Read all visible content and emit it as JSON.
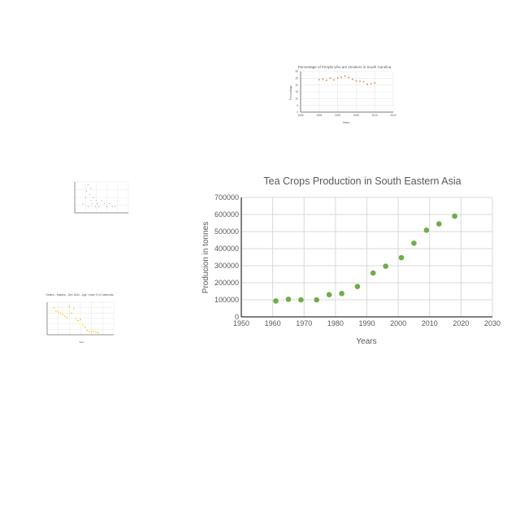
{
  "colors": {
    "background": "#ffffff",
    "grid": "#d9d9d9",
    "axis": "#000000",
    "text": "#595959",
    "tea_marker": "#70ad47",
    "smoke_marker": "#ed7d31",
    "deaths_marker": "#ffc000",
    "scatter_marker": "#a5a5a5"
  },
  "chart_data": [
    {
      "id": "tea",
      "type": "scatter",
      "title": "Tea Crops  Production in South Eastern Asia",
      "xlabel": "Years",
      "ylabel": "Producion in tonnes",
      "xlim": [
        1950,
        2030
      ],
      "ylim": [
        0,
        700000
      ],
      "xticks": [
        1950,
        1960,
        1970,
        1980,
        1990,
        2000,
        2010,
        2020,
        2030
      ],
      "yticks": [
        0,
        100000,
        200000,
        300000,
        400000,
        500000,
        600000,
        700000
      ],
      "grid": true,
      "series": [
        {
          "x": [
            1961,
            1965,
            1969,
            1974,
            1978,
            1982,
            1987,
            1992,
            1996,
            2001,
            2005,
            2009,
            2013,
            2018
          ],
          "y": [
            93000,
            103000,
            100000,
            100000,
            130000,
            137000,
            178000,
            257000,
            297000,
            347000,
            432000,
            508000,
            545000,
            590000
          ]
        }
      ]
    },
    {
      "id": "smokers",
      "type": "scatter",
      "title": "Percentage of People who are smokers in South Carolina",
      "xlabel": "Years",
      "ylabel": "Percentage",
      "xlim": [
        1990,
        2015
      ],
      "ylim": [
        0,
        30
      ],
      "xticks": [
        1990,
        1995,
        2000,
        2005,
        2010,
        2015
      ],
      "yticks": [
        0,
        5,
        10,
        15,
        20,
        25,
        30
      ],
      "grid": true,
      "series": [
        {
          "x": [
            1995,
            1996,
            1997,
            1998,
            1999,
            2000,
            2001,
            2002,
            2003,
            2004,
            2005,
            2006,
            2007,
            2008,
            2009,
            2010
          ],
          "y": [
            24,
            24.5,
            23.5,
            25,
            23.8,
            25.2,
            25.8,
            26.5,
            25.5,
            24.2,
            23,
            22.8,
            22.5,
            20.5,
            21,
            21.5
          ]
        }
      ]
    },
    {
      "id": "scatter_small",
      "type": "scatter",
      "title": "",
      "grid": true,
      "xlim": [
        0,
        10
      ],
      "ylim": [
        0,
        10
      ],
      "series": [
        {
          "x": [
            1.5,
            2,
            2.2,
            2.5,
            2.5,
            2.8,
            3,
            3,
            3.2,
            3.5,
            3.8,
            4,
            4.2,
            4.5,
            5,
            5.5,
            6,
            6.5,
            7,
            7.5
          ],
          "y": [
            3,
            5,
            7,
            9,
            2,
            6,
            4,
            8,
            3,
            5,
            2,
            4,
            3,
            2,
            4,
            3,
            2,
            3,
            2,
            2
          ]
        }
      ]
    },
    {
      "id": "deaths",
      "type": "scatter",
      "title": "Deaths - Malaria - Sex: Both - Age: Under 5 in Cambodia",
      "xlabel": "Year",
      "ylabel": "",
      "xlim": [
        1990,
        2020
      ],
      "ylim": [
        0,
        60
      ],
      "grid": true,
      "series": [
        {
          "x": [
            1993,
            1994,
            1995,
            1996,
            1997,
            1998,
            1999,
            2000,
            2001,
            2002,
            2003,
            2004,
            2005,
            2006,
            2007,
            2008,
            2009,
            2010,
            2011,
            2012,
            2013
          ],
          "y": [
            50,
            44,
            42,
            40,
            38,
            34,
            32,
            52,
            40,
            48,
            30,
            26,
            28,
            18,
            14,
            8,
            6,
            5,
            6,
            5,
            4
          ]
        }
      ]
    }
  ]
}
